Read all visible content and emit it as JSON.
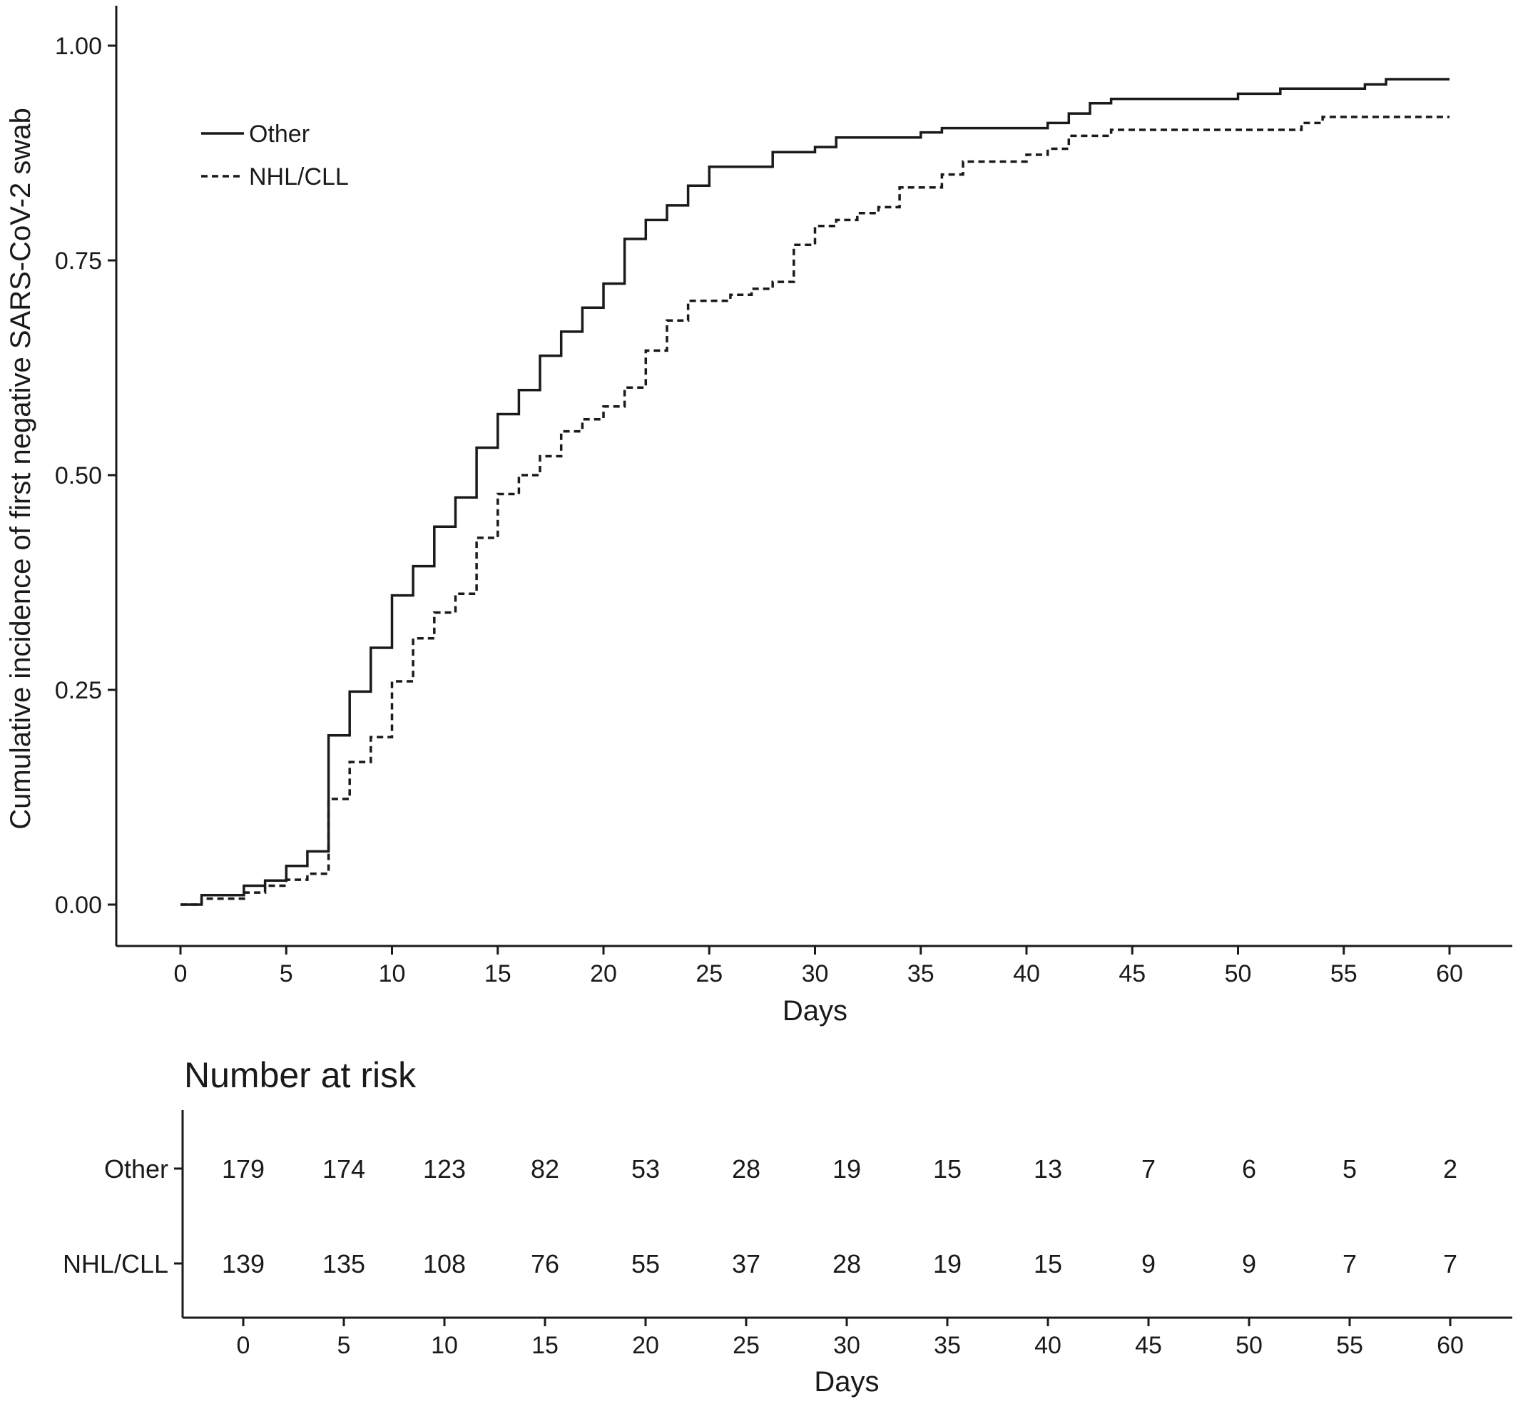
{
  "chart_data": [
    {
      "type": "line",
      "ylabel": "Cumulative incidence of first negative SARS-CoV-2 swab",
      "xlabel": "Days",
      "xlim": [
        0,
        60
      ],
      "ylim": [
        0,
        1
      ],
      "x_ticks": [
        "0",
        "5",
        "10",
        "15",
        "20",
        "25",
        "30",
        "35",
        "40",
        "45",
        "50",
        "55",
        "60"
      ],
      "y_ticks": [
        "0.00",
        "0.25",
        "0.50",
        "0.75",
        "1.00"
      ],
      "legend_position": "top-left",
      "grid": false,
      "step": true,
      "series": [
        {
          "name": "Other",
          "style": "solid",
          "color": "#1a1a1a",
          "x": [
            0,
            1,
            3,
            4,
            5,
            6,
            7,
            8,
            9,
            10,
            11,
            12,
            13,
            14,
            15,
            16,
            17,
            18,
            19,
            20,
            21,
            22,
            23,
            24,
            25,
            28,
            30,
            31,
            35,
            36,
            41,
            42,
            43,
            44,
            50,
            52,
            56,
            57,
            60
          ],
          "y": [
            0.0,
            0.011,
            0.022,
            0.028,
            0.045,
            0.062,
            0.197,
            0.248,
            0.299,
            0.36,
            0.394,
            0.44,
            0.474,
            0.532,
            0.571,
            0.599,
            0.639,
            0.667,
            0.695,
            0.723,
            0.775,
            0.797,
            0.814,
            0.837,
            0.859,
            0.876,
            0.882,
            0.893,
            0.899,
            0.904,
            0.91,
            0.921,
            0.933,
            0.938,
            0.944,
            0.95,
            0.955,
            0.961,
            0.961
          ]
        },
        {
          "name": "NHL/CLL",
          "style": "dashed",
          "color": "#1a1a1a",
          "x": [
            0,
            1,
            3,
            4,
            5,
            6,
            7,
            8,
            9,
            10,
            11,
            12,
            13,
            14,
            15,
            16,
            17,
            18,
            19,
            20,
            21,
            22,
            23,
            24,
            25,
            26,
            27,
            28,
            29,
            30,
            31,
            32,
            33,
            34,
            36,
            37,
            40,
            41,
            42,
            44,
            53,
            54,
            60
          ],
          "y": [
            0.0,
            0.007,
            0.014,
            0.022,
            0.029,
            0.036,
            0.123,
            0.166,
            0.195,
            0.26,
            0.31,
            0.34,
            0.362,
            0.427,
            0.478,
            0.5,
            0.522,
            0.551,
            0.565,
            0.58,
            0.602,
            0.645,
            0.68,
            0.703,
            0.703,
            0.71,
            0.717,
            0.725,
            0.768,
            0.79,
            0.797,
            0.805,
            0.812,
            0.835,
            0.85,
            0.865,
            0.873,
            0.88,
            0.895,
            0.902,
            0.91,
            0.917,
            0.917
          ]
        }
      ]
    },
    {
      "type": "table",
      "title": "Number at risk",
      "xlabel": "Days",
      "columns": [
        "0",
        "5",
        "10",
        "15",
        "20",
        "25",
        "30",
        "35",
        "40",
        "45",
        "50",
        "55",
        "60"
      ],
      "rows": [
        {
          "name": "Other",
          "values": [
            "179",
            "174",
            "123",
            "82",
            "53",
            "28",
            "19",
            "15",
            "13",
            "7",
            "6",
            "5",
            "2"
          ]
        },
        {
          "name": "NHL/CLL",
          "values": [
            "139",
            "135",
            "108",
            "76",
            "55",
            "37",
            "28",
            "19",
            "15",
            "9",
            "9",
            "7",
            "7"
          ]
        }
      ]
    }
  ]
}
